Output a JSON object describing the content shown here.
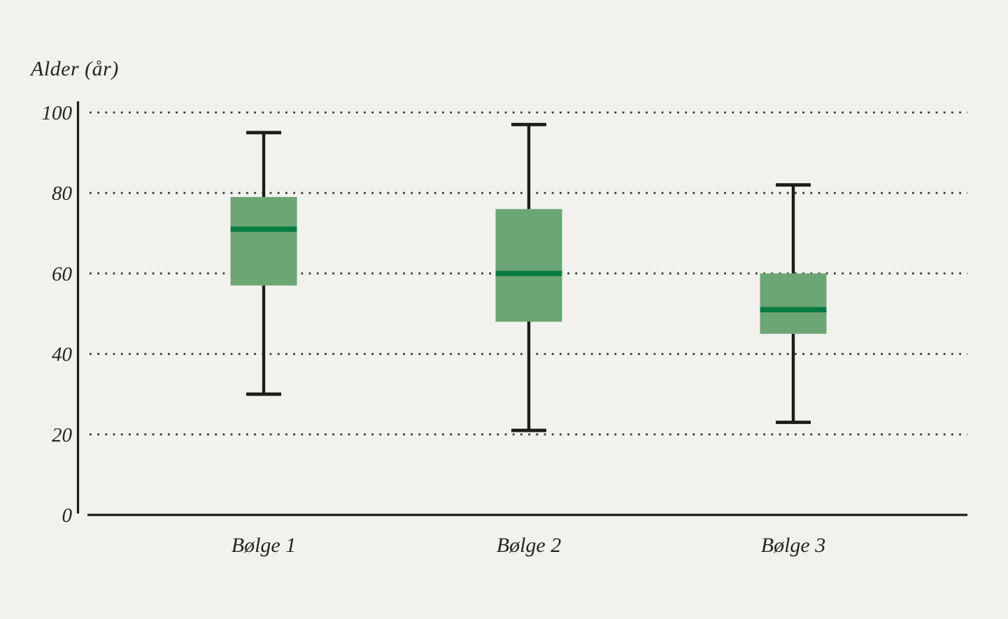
{
  "chart_data": {
    "type": "boxplot",
    "title": "Alder (år)",
    "ylabel": "Alder (år)",
    "xlabel": "",
    "categories": [
      "Bølge 1",
      "Bølge 2",
      "Bølge 3"
    ],
    "series": [
      {
        "name": "Bølge 1",
        "whisker_low": 30,
        "q1": 57,
        "median": 71,
        "q3": 79,
        "whisker_high": 95
      },
      {
        "name": "Bølge 2",
        "whisker_low": 21,
        "q1": 48,
        "median": 60,
        "q3": 76,
        "whisker_high": 97
      },
      {
        "name": "Bølge 3",
        "whisker_low": 23,
        "q1": 45,
        "median": 51,
        "q3": 60,
        "whisker_high": 82
      }
    ],
    "ylim": [
      0,
      100
    ],
    "yticks": [
      0,
      20,
      40,
      60,
      80,
      100
    ],
    "grid": "horizontal-dotted",
    "legend": "none",
    "colors": {
      "background": "#f2f1ee",
      "box_fill": "#6ca674",
      "median": "#087b41",
      "whisker": "#1d1c1a",
      "axis": "#1d1c1a",
      "grid": "#3b3a36",
      "text": "#262421"
    }
  }
}
